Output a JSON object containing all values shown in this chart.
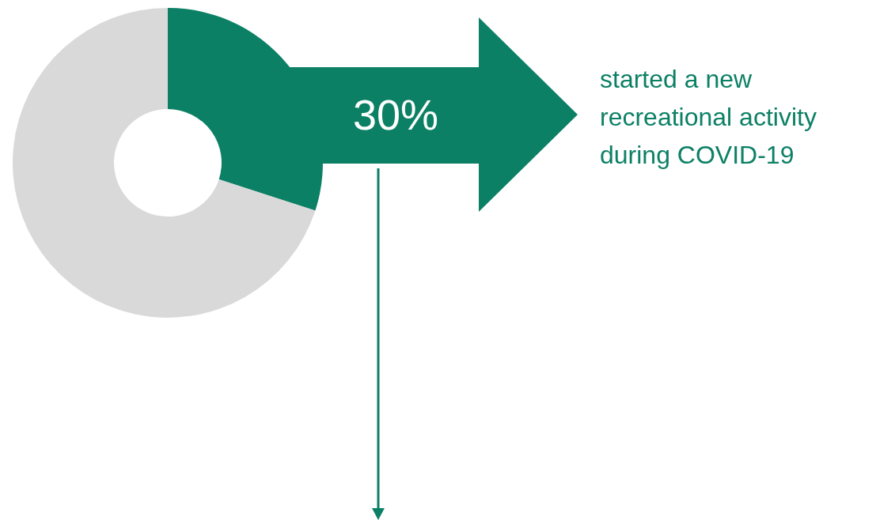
{
  "chart_data": {
    "type": "donut",
    "categories": [
      null,
      null
    ],
    "values": [
      30,
      70
    ],
    "colors": [
      "#0c8065",
      "#d9d9d9"
    ],
    "value_labels": [
      "30%",
      null
    ],
    "annotations": [
      "started a new recreational activity during COVID-19"
    ]
  }
}
